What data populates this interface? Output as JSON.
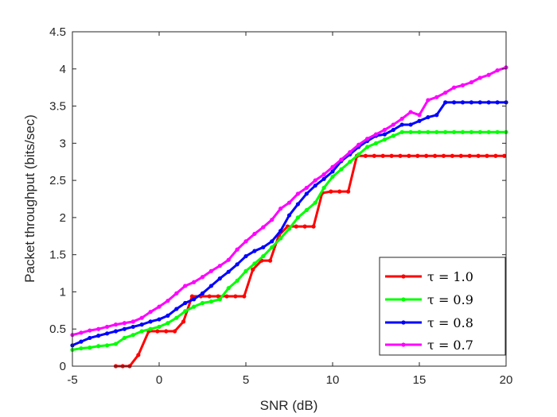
{
  "chart_data": {
    "type": "line",
    "title": "",
    "xlabel": "SNR (dB)",
    "ylabel": "Packet throughput (bits/sec)",
    "xlim": [
      -5,
      20
    ],
    "ylim": [
      0,
      4.5
    ],
    "xticks": [
      -5,
      0,
      5,
      10,
      15,
      20
    ],
    "yticks": [
      0,
      0.5,
      1,
      1.5,
      2,
      2.5,
      3,
      3.5,
      4,
      4.5
    ],
    "xtick_labels": [
      "-5",
      "0",
      "5",
      "10",
      "15",
      "20"
    ],
    "ytick_labels": [
      "0",
      "0.5",
      "1",
      "1.5",
      "2",
      "2.5",
      "3",
      "3.5",
      "4",
      "4.5"
    ],
    "grid": false,
    "legend_position": "bottom-right",
    "series": [
      {
        "name": "τ = 1.0",
        "color": "#ff0000",
        "x": [
          -2.5,
          -2.1,
          -1.7,
          -1.2,
          -0.6,
          -0.1,
          0.4,
          0.9,
          1.4,
          1.9,
          2.4,
          2.9,
          3.4,
          3.9,
          4.4,
          4.9,
          5.4,
          5.9,
          6.4,
          6.9,
          7.4,
          7.9,
          8.4,
          8.9,
          9.4,
          9.9,
          10.4,
          10.9,
          11.4,
          11.9,
          12.4,
          12.9,
          13.4,
          13.9,
          14.4,
          14.9,
          15.4,
          15.9,
          16.4,
          16.9,
          17.4,
          17.9,
          18.4,
          18.9,
          19.4,
          19.9
        ],
        "y": [
          0,
          0,
          0,
          0.15,
          0.47,
          0.47,
          0.47,
          0.47,
          0.6,
          0.94,
          0.94,
          0.94,
          0.94,
          0.94,
          0.94,
          0.94,
          1.3,
          1.42,
          1.42,
          1.76,
          1.88,
          1.88,
          1.88,
          1.88,
          2.33,
          2.35,
          2.35,
          2.35,
          2.83,
          2.83,
          2.83,
          2.83,
          2.83,
          2.83,
          2.83,
          2.83,
          2.83,
          2.83,
          2.83,
          2.83,
          2.83,
          2.83,
          2.83,
          2.83,
          2.83,
          2.83
        ]
      },
      {
        "name": "τ = 0.9",
        "color": "#00ff00",
        "x": [
          -5,
          -4.5,
          -4,
          -3.5,
          -3,
          -2.5,
          -2,
          -1.5,
          -1,
          -0.5,
          0,
          0.5,
          1,
          1.5,
          2,
          2.5,
          3,
          3.5,
          4,
          4.5,
          5,
          5.5,
          6,
          6.5,
          7,
          7.5,
          8,
          8.5,
          9,
          9.5,
          10,
          10.5,
          11,
          11.5,
          12,
          12.5,
          13,
          13.5,
          14,
          14.5,
          15,
          15.5,
          16,
          16.5,
          17,
          17.5,
          18,
          18.5,
          19,
          19.5,
          20
        ],
        "y": [
          0.22,
          0.24,
          0.25,
          0.27,
          0.28,
          0.3,
          0.38,
          0.42,
          0.47,
          0.5,
          0.53,
          0.58,
          0.65,
          0.74,
          0.8,
          0.85,
          0.87,
          0.9,
          1.05,
          1.15,
          1.28,
          1.38,
          1.48,
          1.6,
          1.72,
          1.85,
          2.0,
          2.1,
          2.2,
          2.4,
          2.55,
          2.65,
          2.75,
          2.85,
          2.95,
          3.0,
          3.05,
          3.1,
          3.15,
          3.15,
          3.15,
          3.15,
          3.15,
          3.15,
          3.15,
          3.15,
          3.15,
          3.15,
          3.15,
          3.15,
          3.15
        ]
      },
      {
        "name": "τ = 0.8",
        "color": "#0000ff",
        "x": [
          -5,
          -4.5,
          -4,
          -3.5,
          -3,
          -2.5,
          -2,
          -1.5,
          -1,
          -0.5,
          0,
          0.5,
          1,
          1.5,
          2,
          2.5,
          3,
          3.5,
          4,
          4.5,
          5,
          5.5,
          6,
          6.5,
          7,
          7.5,
          8,
          8.5,
          9,
          9.5,
          10,
          10.5,
          11,
          11.5,
          12,
          12.5,
          13,
          13.5,
          14,
          14.5,
          15,
          15.5,
          16,
          16.5,
          17,
          17.5,
          18,
          18.5,
          19,
          19.5,
          20
        ],
        "y": [
          0.28,
          0.33,
          0.38,
          0.41,
          0.44,
          0.47,
          0.5,
          0.53,
          0.56,
          0.6,
          0.63,
          0.68,
          0.77,
          0.85,
          0.9,
          0.98,
          1.08,
          1.18,
          1.27,
          1.37,
          1.48,
          1.55,
          1.6,
          1.68,
          1.82,
          2.03,
          2.18,
          2.32,
          2.43,
          2.52,
          2.62,
          2.76,
          2.85,
          2.95,
          3.03,
          3.1,
          3.12,
          3.18,
          3.25,
          3.25,
          3.3,
          3.35,
          3.38,
          3.55,
          3.55,
          3.55,
          3.55,
          3.55,
          3.55,
          3.55,
          3.55
        ]
      },
      {
        "name": "τ = 0.7",
        "color": "#ff00ff",
        "x": [
          -5,
          -4.5,
          -4,
          -3.5,
          -3,
          -2.5,
          -2,
          -1.5,
          -1,
          -0.5,
          0,
          0.5,
          1,
          1.5,
          2,
          2.5,
          3,
          3.5,
          4,
          4.5,
          5,
          5.5,
          6,
          6.5,
          7,
          7.5,
          8,
          8.5,
          9,
          9.5,
          10,
          10.5,
          11,
          11.5,
          12,
          12.5,
          13,
          13.5,
          14,
          14.5,
          15,
          15.5,
          16,
          16.5,
          17,
          17.5,
          18,
          18.5,
          19,
          19.5,
          20
        ],
        "y": [
          0.42,
          0.45,
          0.48,
          0.5,
          0.53,
          0.56,
          0.58,
          0.6,
          0.65,
          0.73,
          0.8,
          0.88,
          0.98,
          1.08,
          1.13,
          1.2,
          1.28,
          1.35,
          1.43,
          1.57,
          1.68,
          1.78,
          1.87,
          1.97,
          2.12,
          2.2,
          2.32,
          2.4,
          2.5,
          2.58,
          2.68,
          2.78,
          2.88,
          2.98,
          3.06,
          3.12,
          3.18,
          3.25,
          3.33,
          3.42,
          3.38,
          3.58,
          3.62,
          3.68,
          3.75,
          3.78,
          3.82,
          3.88,
          3.92,
          3.98,
          4.02
        ]
      }
    ]
  }
}
